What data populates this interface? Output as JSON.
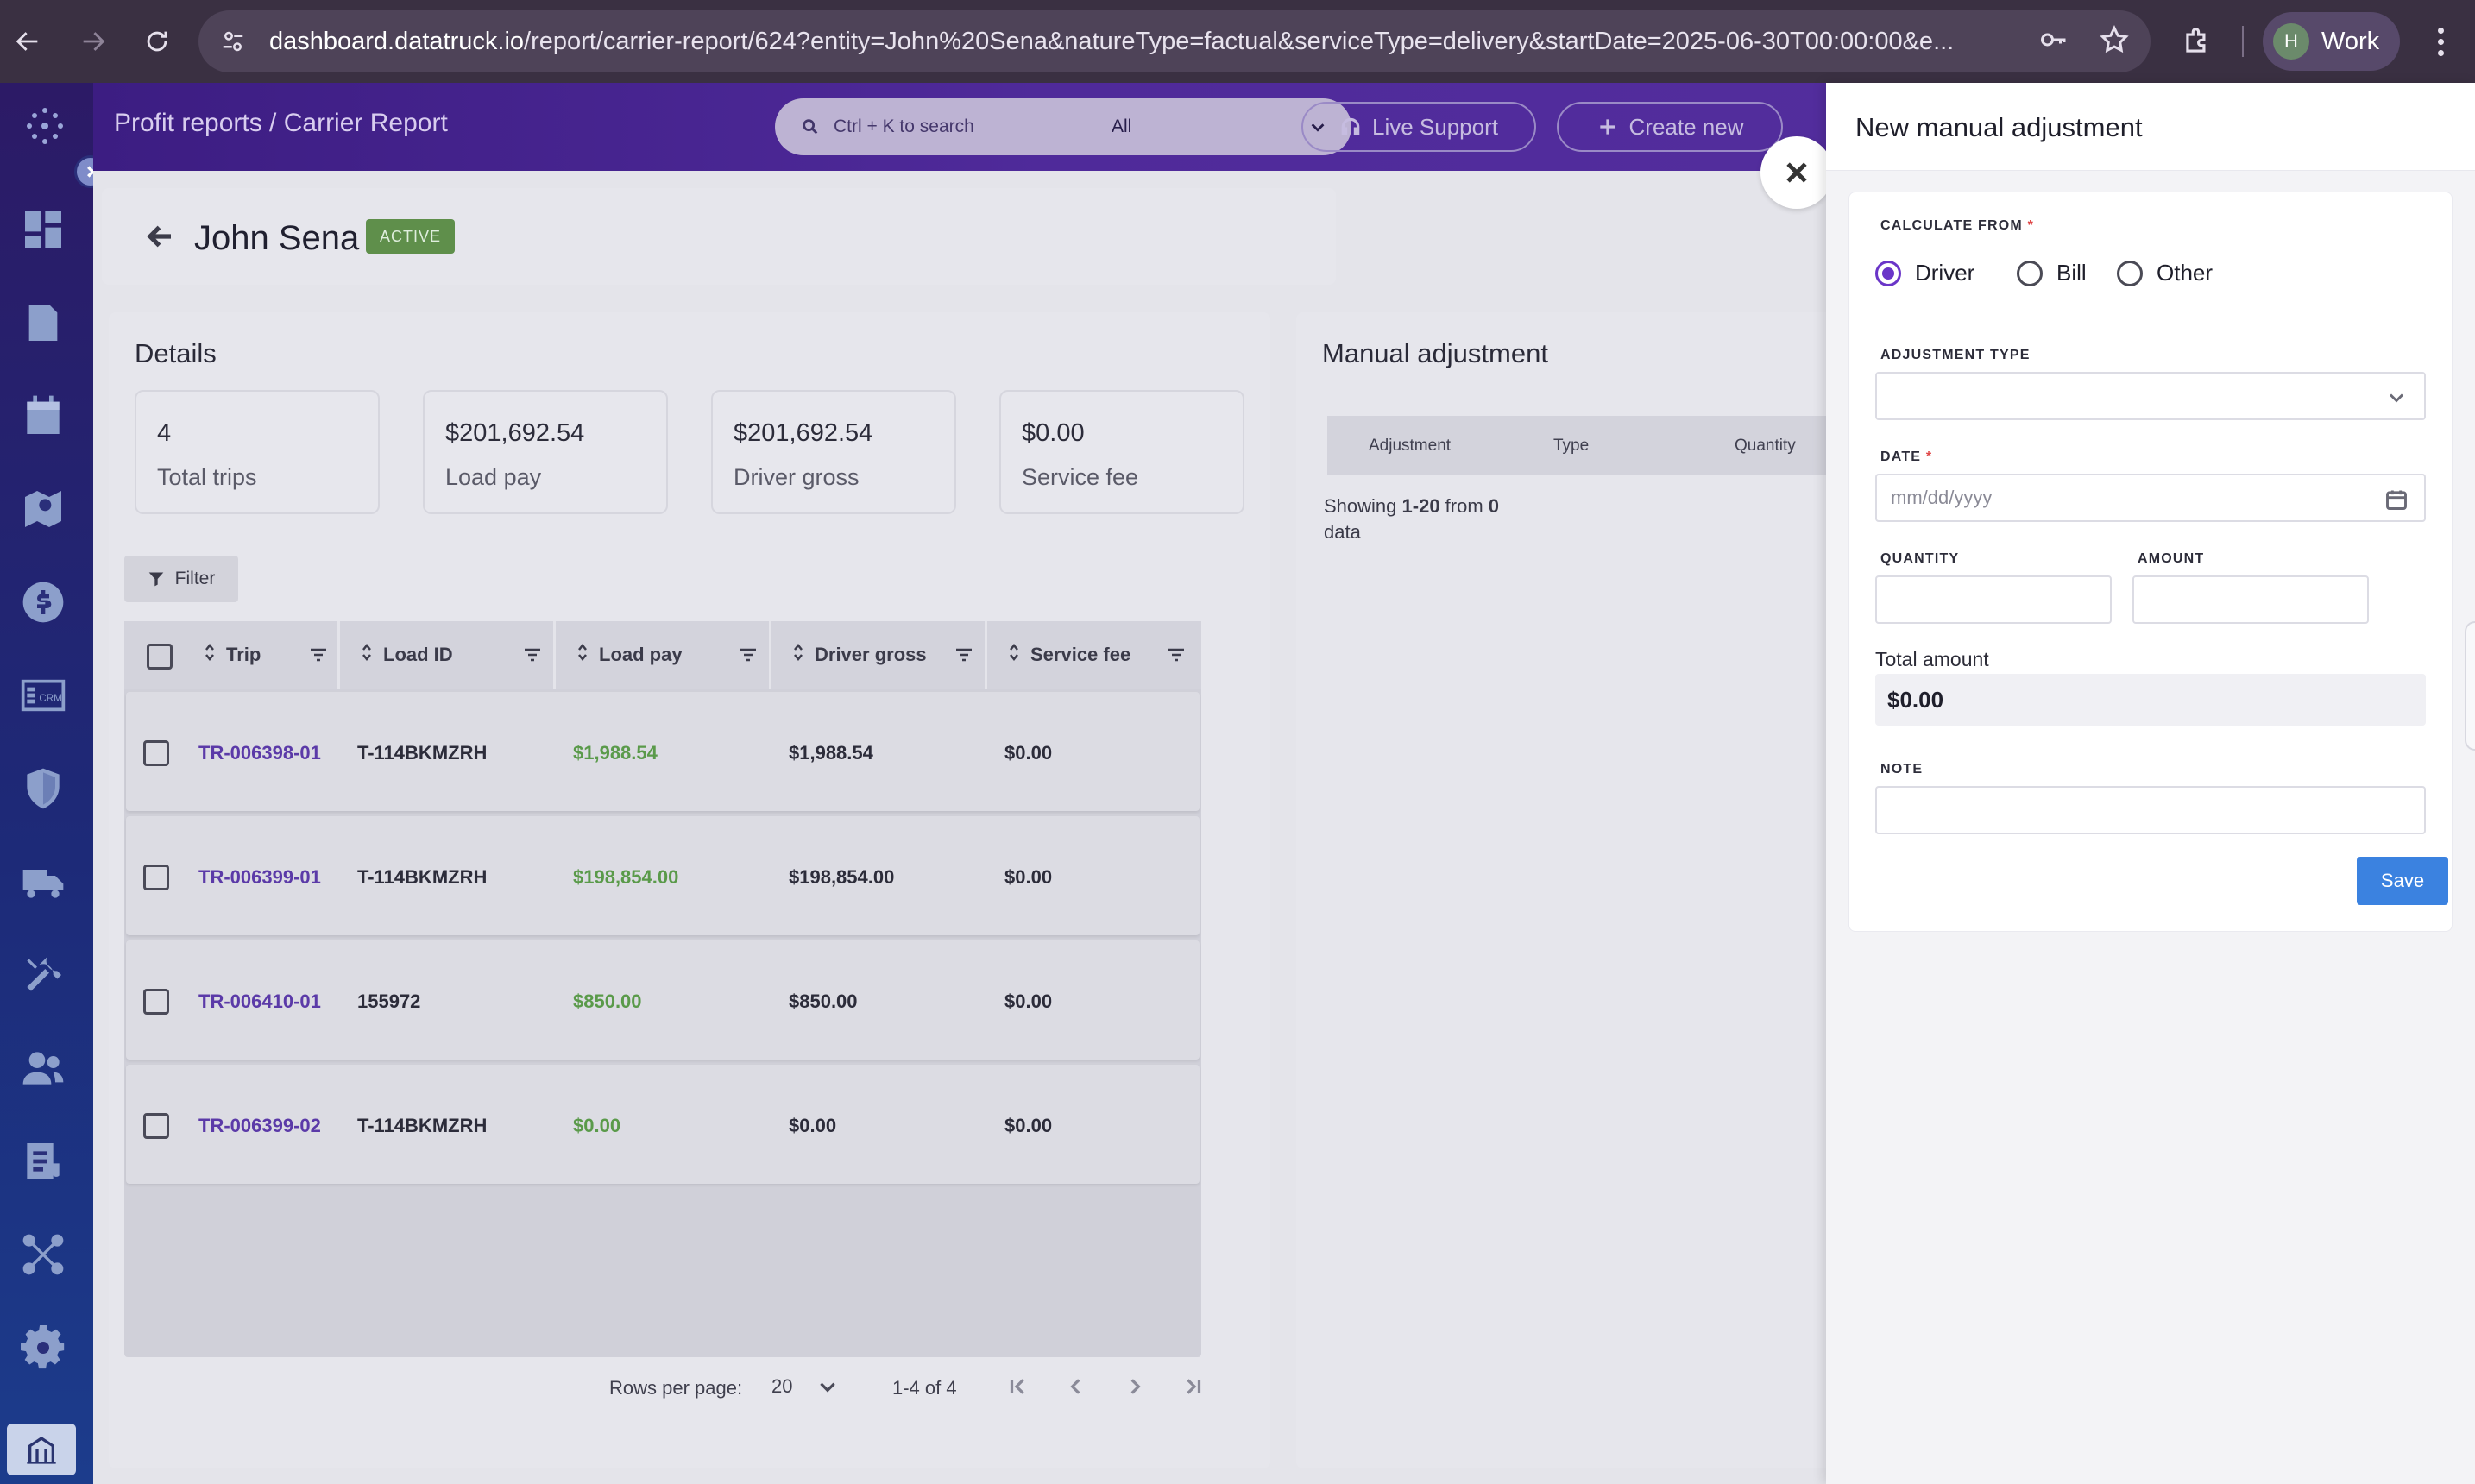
{
  "browser": {
    "url_host": "dashboard.datatruck.io",
    "url_path": "/report/carrier-report/624?entity=John%20Sena&natureType=factual&serviceType=delivery&startDate=2025-06-30T00:00:00&e...",
    "profile_initial": "H",
    "profile_name": "Work"
  },
  "header": {
    "breadcrumb": "Profit reports / Carrier Report",
    "search_placeholder": "Ctrl + K to search",
    "search_scope": "All",
    "live_support": "Live Support",
    "create_new": "Create new"
  },
  "page": {
    "name": "John Sena",
    "status": "ACTIVE"
  },
  "details": {
    "title": "Details",
    "stats": [
      {
        "value": "4",
        "label": "Total trips"
      },
      {
        "value": "$201,692.54",
        "label": "Load pay"
      },
      {
        "value": "$201,692.54",
        "label": "Driver gross"
      },
      {
        "value": "$0.00",
        "label": "Service fee"
      }
    ],
    "filter_label": "Filter",
    "columns": [
      "Trip",
      "Load ID",
      "Load pay",
      "Driver gross",
      "Service fee"
    ],
    "rows": [
      {
        "trip": "TR-006398-01",
        "load_id": "T-114BKMZRH",
        "load_pay": "$1,988.54",
        "driver_gross": "$1,988.54",
        "service_fee": "$0.00"
      },
      {
        "trip": "TR-006399-01",
        "load_id": "T-114BKMZRH",
        "load_pay": "$198,854.00",
        "driver_gross": "$198,854.00",
        "service_fee": "$0.00"
      },
      {
        "trip": "TR-006410-01",
        "load_id": "155972",
        "load_pay": "$850.00",
        "driver_gross": "$850.00",
        "service_fee": "$0.00"
      },
      {
        "trip": "TR-006399-02",
        "load_id": "T-114BKMZRH",
        "load_pay": "$0.00",
        "driver_gross": "$0.00",
        "service_fee": "$0.00"
      }
    ],
    "pagination": {
      "rows_per_page_label": "Rows per page:",
      "rows_per_page": "20",
      "range": "1-4 of 4"
    }
  },
  "manual_adjustment": {
    "title": "Manual adjustment",
    "columns": [
      "Adjustment",
      "Type",
      "Quantity"
    ],
    "showing_prefix": "Showing ",
    "showing_range": "1-20",
    "showing_mid": " from ",
    "showing_count": "0",
    "showing_suffix": "data"
  },
  "drawer": {
    "title": "New manual adjustment",
    "calculate_from_label": "CALCULATE FROM",
    "calculate_from_options": [
      "Driver",
      "Bill",
      "Other"
    ],
    "calculate_from_selected": "Driver",
    "adjustment_type_label": "ADJUSTMENT TYPE",
    "adjustment_type_value": "",
    "date_label": "DATE",
    "date_placeholder": "mm/dd/yyyy",
    "quantity_label": "QUANTITY",
    "quantity_value": "",
    "amount_label": "AMOUNT",
    "amount_value": "",
    "total_amount_label": "Total amount",
    "total_amount_value": "$0.00",
    "note_label": "NOTE",
    "note_value": "",
    "required_mark": "*",
    "save_label": "Save"
  },
  "colors": {
    "brand_purple": "#4f2a9a",
    "accent_radio": "#6a35c8",
    "save_blue": "#3b82e0",
    "status_green": "#5f8f4b",
    "trip_link": "#5b3aa8",
    "load_pay_green": "#5a9a4a"
  }
}
